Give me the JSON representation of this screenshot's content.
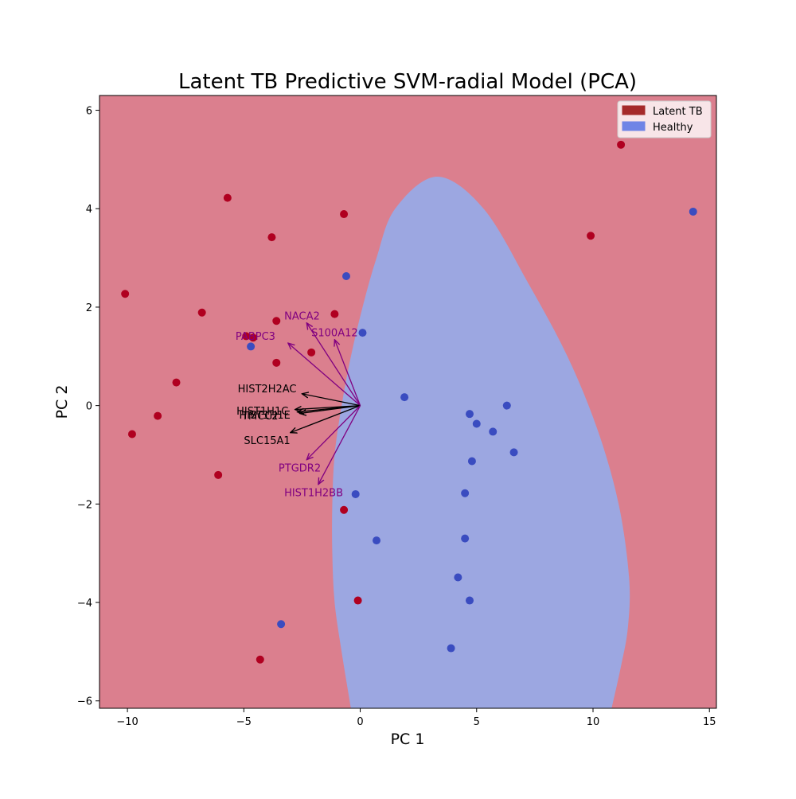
{
  "chart_data": {
    "type": "scatter",
    "title": "Latent TB Predictive SVM-radial Model (PCA)",
    "xlabel": "PC 1",
    "ylabel": "PC 2",
    "xlim": [
      -11.2,
      15.3
    ],
    "ylim": [
      -6.15,
      6.3
    ],
    "xticks": [
      -10,
      -5,
      0,
      5,
      10,
      15
    ],
    "yticks": [
      -6,
      -4,
      -2,
      0,
      2,
      4,
      6
    ],
    "tick_labels_x": [
      "−10",
      "−5",
      "0",
      "5",
      "10",
      "15"
    ],
    "tick_labels_y": [
      "−6",
      "−4",
      "−2",
      "0",
      "2",
      "4",
      "6"
    ],
    "grid": false,
    "legend_position": "top-right",
    "background_region": {
      "label": "Latent TB",
      "color": "#db7f8e"
    },
    "decision_region": {
      "label": "Healthy",
      "color": "#9ca7e1",
      "boundary": [
        [
          -0.4,
          -6.15
        ],
        [
          -0.8,
          -5.0
        ],
        [
          -1.1,
          -4.0
        ],
        [
          -1.2,
          -3.0
        ],
        [
          -1.2,
          -2.0
        ],
        [
          -1.1,
          -1.0
        ],
        [
          -0.8,
          0.0
        ],
        [
          -0.4,
          1.0
        ],
        [
          0.1,
          2.0
        ],
        [
          0.7,
          3.0
        ],
        [
          1.5,
          4.0
        ],
        [
          3.3,
          4.65
        ],
        [
          5.3,
          4.0
        ],
        [
          7.2,
          2.5
        ],
        [
          8.9,
          1.0
        ],
        [
          10.2,
          -0.5
        ],
        [
          11.1,
          -2.0
        ],
        [
          11.55,
          -3.5
        ],
        [
          11.5,
          -4.5
        ],
        [
          11.2,
          -5.3
        ],
        [
          10.8,
          -6.15
        ]
      ]
    },
    "series": [
      {
        "name": "Latent TB",
        "color": "#b00020",
        "legend_color": "#a52a2a",
        "points": [
          [
            11.2,
            5.3
          ],
          [
            9.9,
            3.45
          ],
          [
            -5.7,
            4.22
          ],
          [
            -0.7,
            3.89
          ],
          [
            -3.8,
            3.42
          ],
          [
            -10.1,
            2.27
          ],
          [
            -6.8,
            1.89
          ],
          [
            -1.1,
            1.86
          ],
          [
            -3.6,
            1.72
          ],
          [
            -4.9,
            1.41
          ],
          [
            -4.6,
            1.38
          ],
          [
            -2.1,
            1.08
          ],
          [
            -3.6,
            0.87
          ],
          [
            -7.9,
            0.47
          ],
          [
            -8.7,
            -0.21
          ],
          [
            -9.8,
            -0.58
          ],
          [
            -6.1,
            -1.41
          ],
          [
            -0.7,
            -2.12
          ],
          [
            -0.1,
            -3.96
          ],
          [
            -4.3,
            -5.16
          ]
        ]
      },
      {
        "name": "Healthy",
        "color": "#3a4cc0",
        "legend_color": "#6f84e6",
        "points": [
          [
            14.3,
            3.94
          ],
          [
            -0.6,
            2.63
          ],
          [
            0.1,
            1.48
          ],
          [
            -4.7,
            1.2
          ],
          [
            1.9,
            0.17
          ],
          [
            6.3,
            0.0
          ],
          [
            4.7,
            -0.17
          ],
          [
            5.0,
            -0.37
          ],
          [
            5.7,
            -0.53
          ],
          [
            6.6,
            -0.95
          ],
          [
            4.8,
            -1.13
          ],
          [
            4.5,
            -1.78
          ],
          [
            -0.2,
            -1.8
          ],
          [
            0.7,
            -2.74
          ],
          [
            4.5,
            -2.7
          ],
          [
            4.2,
            -3.49
          ],
          [
            4.7,
            -3.96
          ],
          [
            -3.4,
            -4.44
          ],
          [
            3.9,
            -4.93
          ]
        ]
      }
    ],
    "loadings": [
      {
        "name": "NACA2",
        "tip": [
          -2.3,
          1.68
        ],
        "label_pos": [
          -2.5,
          1.83
        ],
        "color": "#800080"
      },
      {
        "name": "S100A12",
        "tip": [
          -1.1,
          1.34
        ],
        "label_pos": [
          -1.1,
          1.49
        ],
        "color": "#800080"
      },
      {
        "name": "PABPC3",
        "tip": [
          -3.1,
          1.27
        ],
        "label_pos": [
          -4.5,
          1.42
        ],
        "color": "#800080"
      },
      {
        "name": "HIST2H2AC",
        "tip": [
          -2.5,
          0.24
        ],
        "label_pos": [
          -4.0,
          0.35
        ],
        "color": "#000000"
      },
      {
        "name": "HIST1H1C",
        "tip": [
          -2.8,
          -0.08
        ],
        "label_pos": [
          -4.2,
          -0.1
        ],
        "color": "#000000"
      },
      {
        "name": "HIST1H1E",
        "tip": [
          -2.7,
          -0.13
        ],
        "label_pos": [
          -4.1,
          -0.18
        ],
        "color": "#000000"
      },
      {
        "name": "TMCC2",
        "tip": [
          -2.6,
          -0.16
        ],
        "label_pos": [
          -4.3,
          -0.2
        ],
        "color": "#000000"
      },
      {
        "name": "SLC15A1",
        "tip": [
          -3.0,
          -0.55
        ],
        "label_pos": [
          -4.0,
          -0.7
        ],
        "color": "#000000"
      },
      {
        "name": "PTGDR2",
        "tip": [
          -2.3,
          -1.1
        ],
        "label_pos": [
          -2.6,
          -1.26
        ],
        "color": "#800080"
      },
      {
        "name": "HIST1H2BB",
        "tip": [
          -1.8,
          -1.6
        ],
        "label_pos": [
          -2.0,
          -1.76
        ],
        "color": "#800080"
      }
    ]
  }
}
